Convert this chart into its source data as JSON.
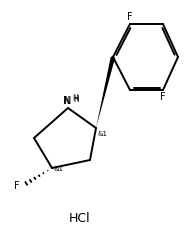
{
  "background": "#ffffff",
  "hcl_text": "HCl",
  "f_top": "F",
  "f_right": "F",
  "f_left": "F",
  "nh_label": "N",
  "h_label": "H",
  "stereo1": "&1",
  "stereo2": "&1",
  "figsize": [
    1.92,
    2.43
  ],
  "dpi": 100,
  "lw": 1.4
}
